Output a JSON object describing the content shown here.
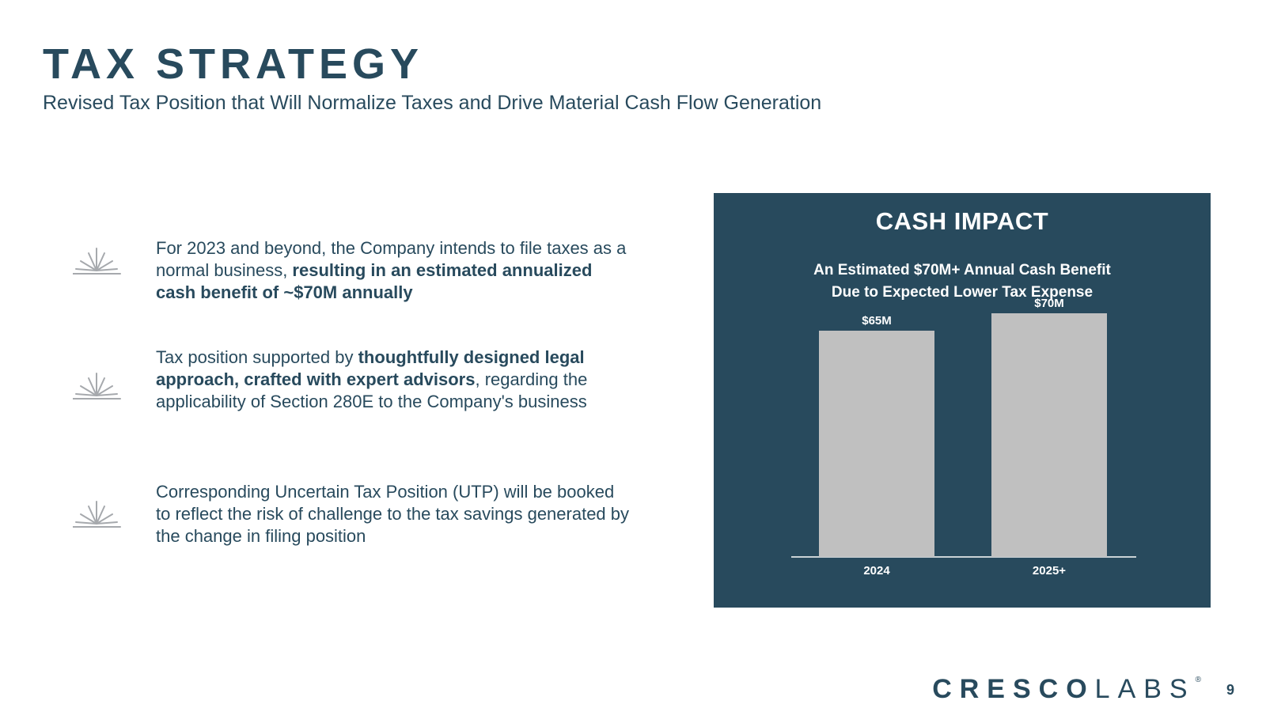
{
  "header": {
    "title": "TAX STRATEGY",
    "subtitle": "Revised Tax Position that Will Normalize Taxes and Drive Material Cash Flow Generation"
  },
  "bullets": [
    {
      "icon": "sunburst-icon",
      "plain_before": "For 2023 and beyond, the Company intends to file taxes as a normal business, ",
      "bold": "resulting in an estimated annualized cash benefit of ~$70M annually",
      "plain_after": ""
    },
    {
      "icon": "sunburst-icon",
      "plain_before": "Tax position supported by ",
      "bold": "thoughtfully designed legal approach, crafted with expert advisors",
      "plain_after": ", regarding the applicability of Section 280E to the Company's business"
    },
    {
      "icon": "sunburst-icon",
      "plain_before": "Corresponding Uncertain Tax Position (UTP) will be booked to reflect the risk of challenge to the tax savings generated by the change in filing position",
      "bold": "",
      "plain_after": ""
    }
  ],
  "panel": {
    "title": "CASH IMPACT",
    "subtitle_line1": "An Estimated $70M+ Annual Cash Benefit",
    "subtitle_line2": "Due to Expected Lower Tax Expense"
  },
  "chart_data": {
    "type": "bar",
    "categories": [
      "2024",
      "2025+"
    ],
    "values": [
      65,
      70
    ],
    "data_labels": [
      "$65M",
      "$70M"
    ],
    "title": "CASH IMPACT",
    "subtitle": "An Estimated $70M+ Annual Cash Benefit Due to Expected Lower Tax Expense",
    "xlabel": "",
    "ylabel": "",
    "ylim": [
      0,
      75
    ],
    "grid": false,
    "legend": "none",
    "bar_color": "#c0c0c0",
    "background_color": "#284a5d",
    "axis_color": "#ffffff"
  },
  "footer": {
    "logo_bold": "CRESCO",
    "logo_light": "LABS",
    "logo_mark": "®",
    "page_number": "9"
  },
  "colors": {
    "brand": "#284a5d",
    "icon": "#a6a9ad"
  }
}
